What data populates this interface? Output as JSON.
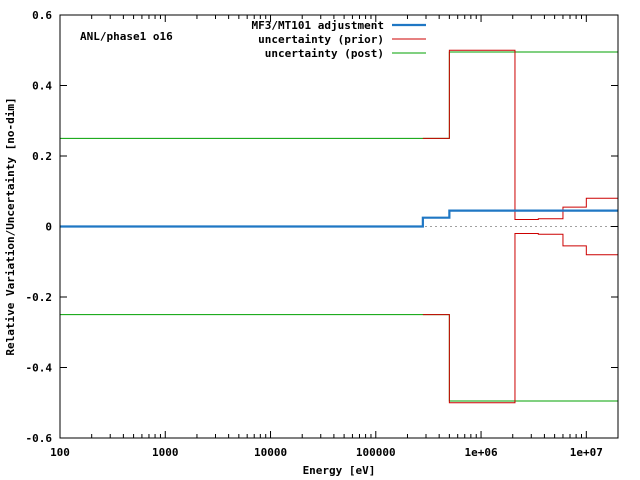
{
  "chart_data": {
    "type": "line",
    "title": "",
    "annotation": "ANL/phase1 o16",
    "xlabel": "Energy [eV]",
    "ylabel": "Relative Variation/Uncertainty [no-dim]",
    "x_scale": "log",
    "xlim": [
      100,
      20000000
    ],
    "ylim": [
      -0.6,
      0.6
    ],
    "x_ticks": [
      100,
      1000,
      10000,
      100000,
      1000000,
      10000000
    ],
    "x_tick_labels": [
      "100",
      "1000",
      "10000",
      "100000",
      "1e+06",
      "1e+07"
    ],
    "y_ticks": [
      -0.6,
      -0.4,
      -0.2,
      0,
      0.2,
      0.4,
      0.6
    ],
    "y_tick_labels": [
      "-0.6",
      "-0.4",
      "-0.2",
      "0",
      "0.2",
      "0.4",
      "0.6"
    ],
    "legend_position": "top-right",
    "series": [
      {
        "name": "MF3/MT101 adjustment",
        "color": "#1f77c4",
        "style": "step",
        "x": [
          100,
          280000,
          500000,
          20000000
        ],
        "y": [
          0,
          0.025,
          0.045,
          0.045
        ]
      },
      {
        "name": "uncertainty (prior)",
        "color": "#cc0000",
        "style": "step",
        "x": [
          280000,
          500000,
          2100000,
          3500000,
          6000000,
          10000000,
          20000000
        ],
        "y": [
          0.25,
          0.5,
          0.02,
          0.022,
          0.055,
          0.08,
          0.08
        ]
      },
      {
        "name": "uncertainty (prior)",
        "color": "#cc0000",
        "style": "step",
        "x": [
          280000,
          500000,
          2100000,
          3500000,
          6000000,
          10000000,
          20000000
        ],
        "y": [
          -0.25,
          -0.5,
          -0.02,
          -0.022,
          -0.055,
          -0.08,
          -0.08
        ]
      },
      {
        "name": "uncertainty (post)",
        "color": "#00a000",
        "style": "step",
        "x": [
          100,
          500000,
          20000000
        ],
        "y": [
          0.25,
          0.495,
          0.495
        ]
      },
      {
        "name": "uncertainty (post)",
        "color": "#00a000",
        "style": "step",
        "x": [
          100,
          500000,
          20000000
        ],
        "y": [
          -0.25,
          -0.495,
          -0.495
        ]
      }
    ],
    "zero_line": {
      "color": "#a0a0a0",
      "style": "dotted"
    }
  }
}
